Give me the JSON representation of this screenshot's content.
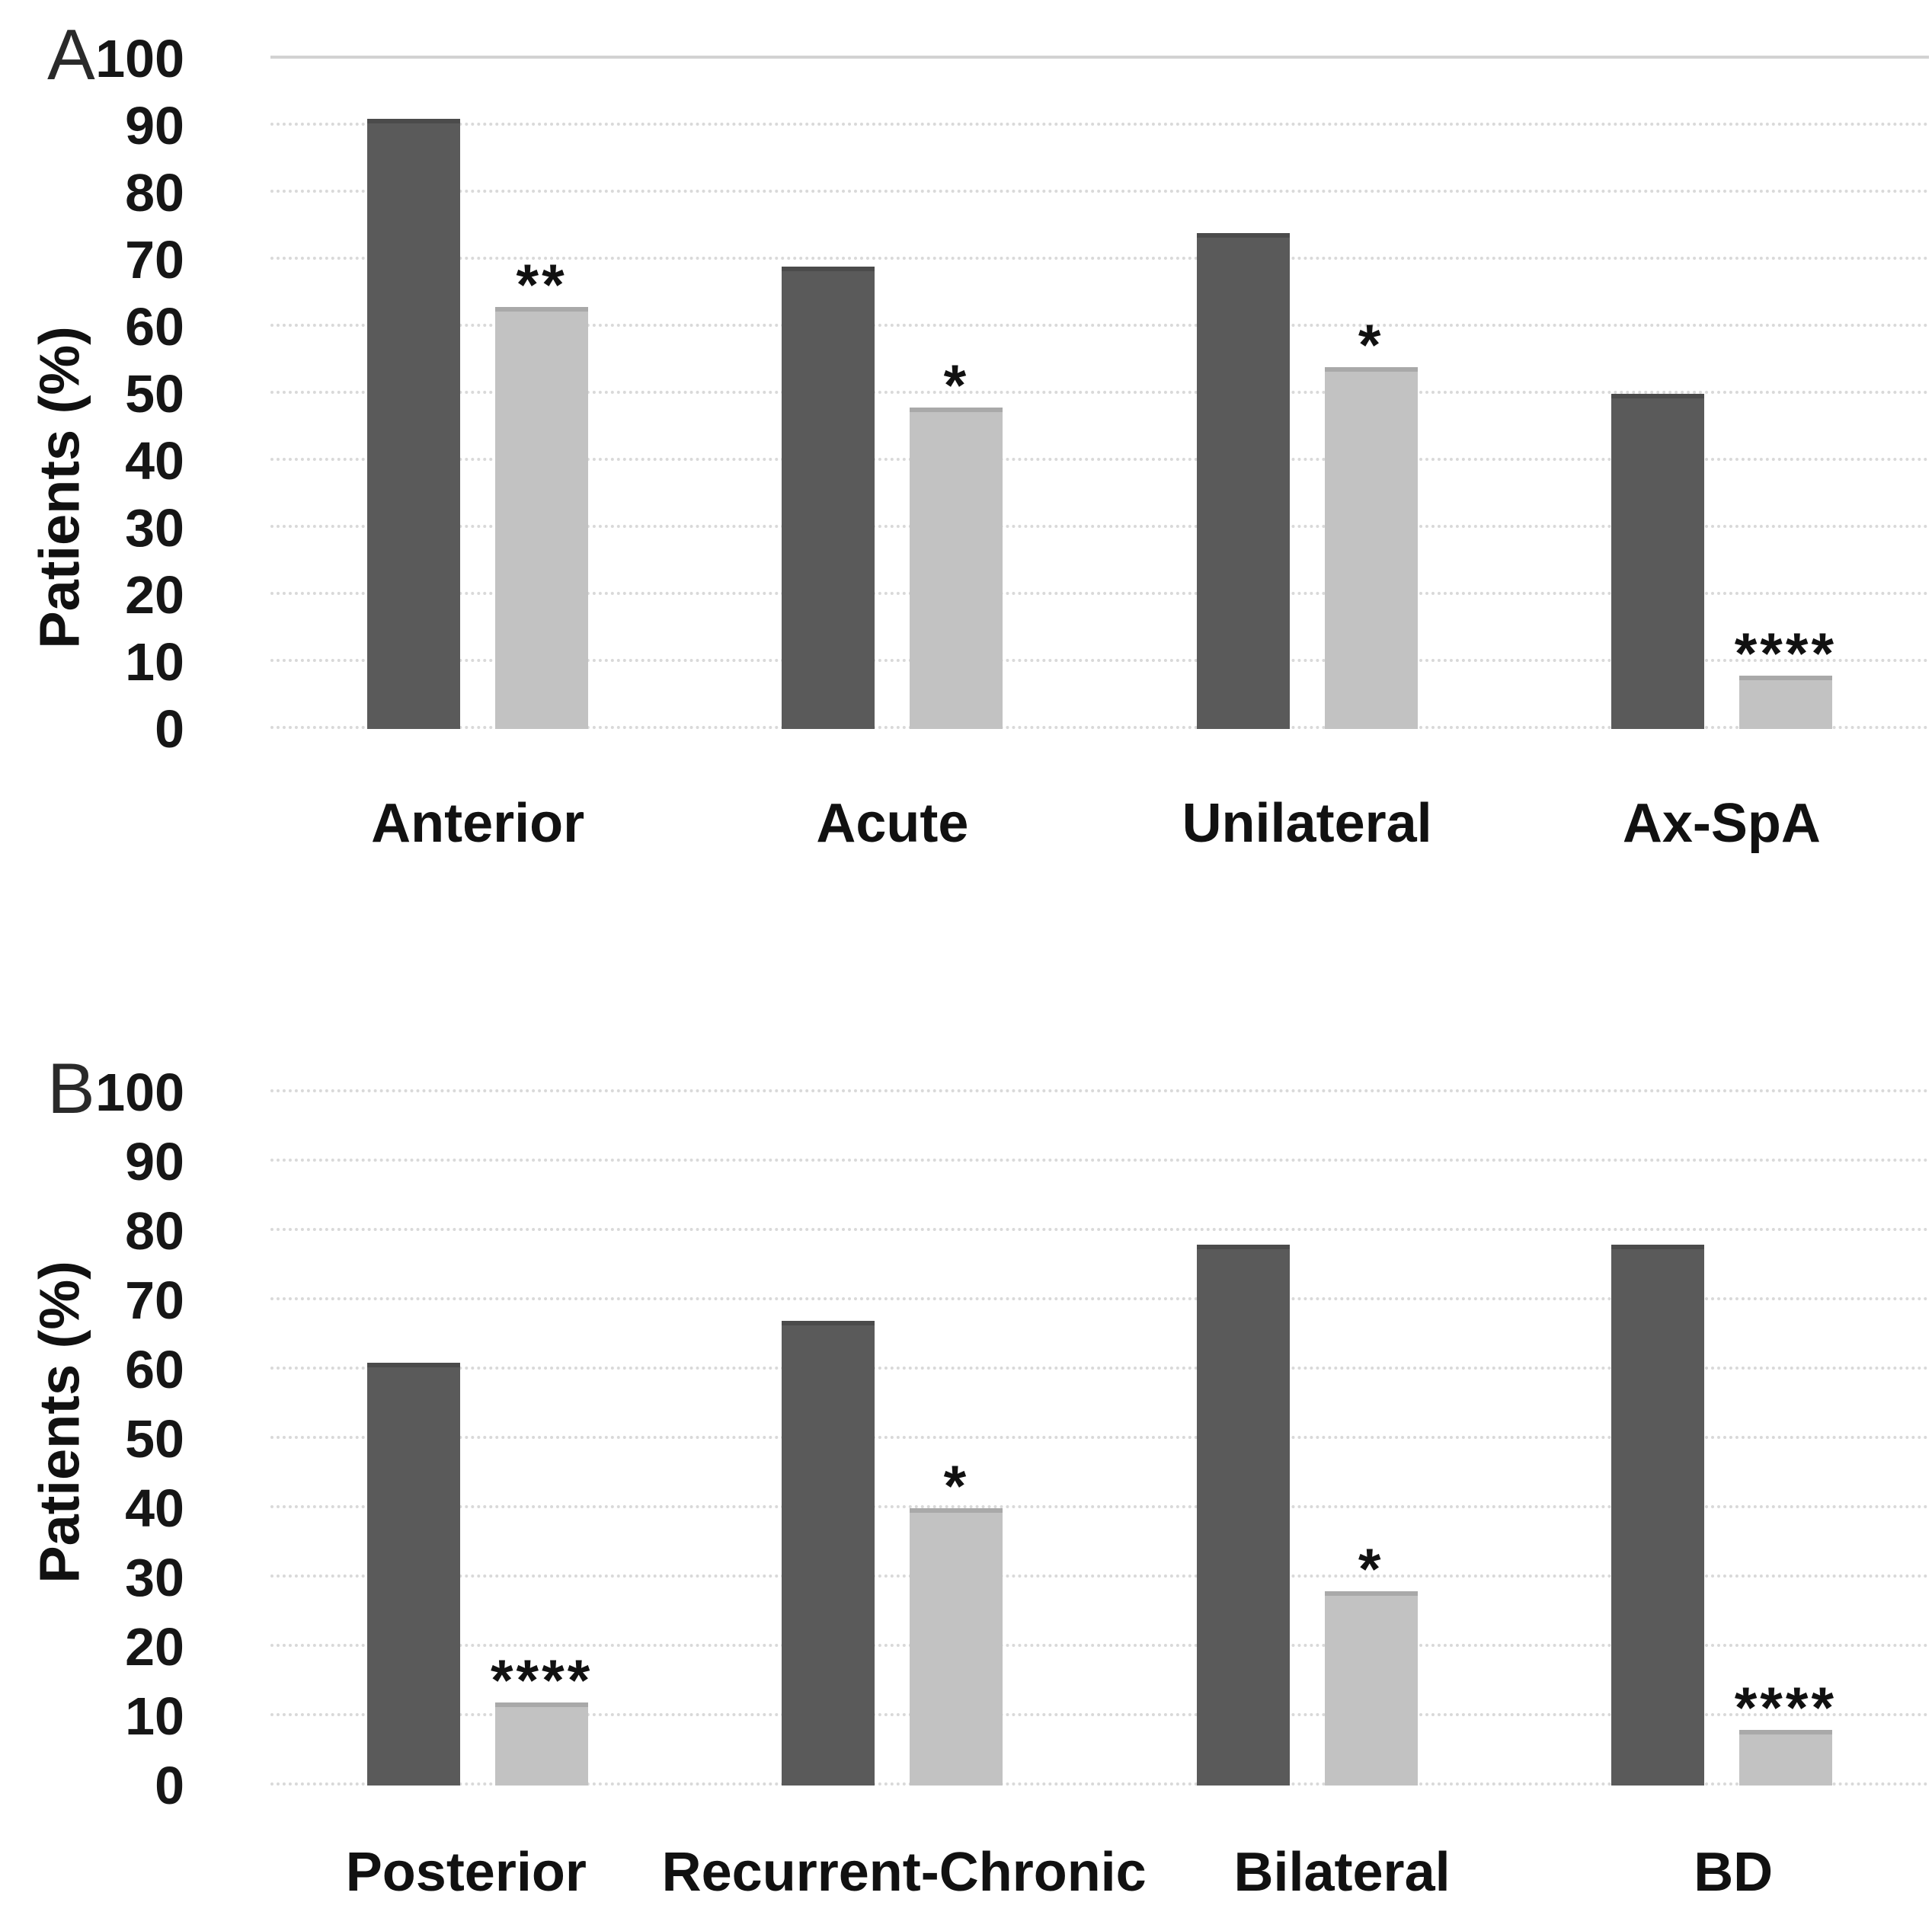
{
  "figure": {
    "background_color": "#ffffff",
    "text_color": "#1c1c1c",
    "gridline_color": "#d9d9d9",
    "bar_colors": {
      "dark": "#5a5a5a",
      "light": "#c2c2c2"
    }
  },
  "chart_data": [
    {
      "type": "bar",
      "panel": "A",
      "ylabel": "Patients (%)",
      "ylim": [
        0,
        100
      ],
      "yticks": [
        0,
        10,
        20,
        30,
        40,
        50,
        60,
        70,
        80,
        90,
        100
      ],
      "grid": "horizontal-dotted",
      "legend": "none",
      "categories": [
        "Anterior",
        "Acute",
        "Unilateral",
        "Ax-SpA"
      ],
      "series": [
        {
          "name": "dark-gray",
          "color": "#5a5a5a",
          "values": [
            91,
            69,
            74,
            50
          ]
        },
        {
          "name": "light-gray",
          "color": "#c2c2c2",
          "values": [
            63,
            48,
            54,
            8
          ]
        }
      ],
      "significance": [
        "**",
        "*",
        "*",
        "****"
      ],
      "significance_on_series": "light-gray"
    },
    {
      "type": "bar",
      "panel": "B",
      "ylabel": "Patients (%)",
      "ylim": [
        0,
        100
      ],
      "yticks": [
        0,
        10,
        20,
        30,
        40,
        50,
        60,
        70,
        80,
        90,
        100
      ],
      "grid": "horizontal-dotted",
      "legend": "none",
      "categories": [
        "Posterior",
        "Recurrent-Chronic",
        "Bilateral",
        "BD"
      ],
      "series": [
        {
          "name": "dark-gray",
          "color": "#5a5a5a",
          "values": [
            61,
            67,
            78,
            78
          ]
        },
        {
          "name": "light-gray",
          "color": "#c2c2c2",
          "values": [
            12,
            40,
            28,
            8
          ]
        }
      ],
      "significance": [
        "****",
        "*",
        "*",
        "****"
      ],
      "significance_on_series": "light-gray"
    }
  ]
}
